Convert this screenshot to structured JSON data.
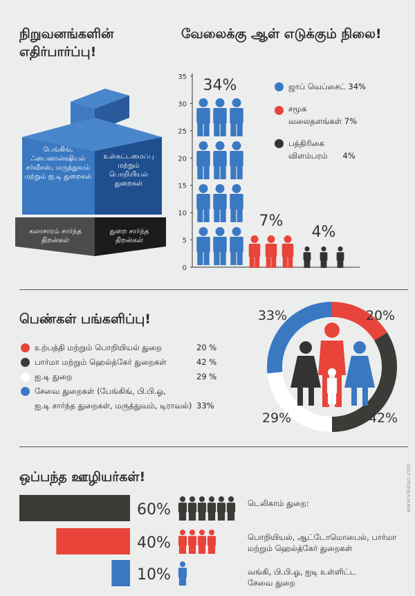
{
  "section1": {
    "title_line1": "நிறுவனங்களின்",
    "title_line2": "எதிர்பார்ப்பு!",
    "box_top_left": "பேங்கிங், ஃபைனான்ஷியல் சர்வீசஸ், மருத்துவம் மற்றும் ஐ.டி துறைகள்",
    "box_top_right": "உள்கட்டமைப்பு மற்றும் பொறியியல் துறைகள்",
    "box_bottom_left": "கலாசாரம் சார்ந்த திறன்கள்",
    "box_bottom_right": "துறை சார்ந்த திறன்கள்"
  },
  "section2": {
    "title": "வேலைக்கு ஆள் எடுக்கும் நிலை!",
    "legend": [
      {
        "label_line1": "ஜாப் வெப்சைட் 34%",
        "label_line2": "",
        "color": "#3a78c2"
      },
      {
        "label_line1": "சமூக",
        "label_line2": "வலைதளங்கள் 7%",
        "color": "#e8443a"
      },
      {
        "label_line1": "பத்திரிகை",
        "label_line2": "விளம்பரம்      4%",
        "color": "#333333"
      }
    ]
  },
  "section3": {
    "title": "பெண்கள் பங்களிப்பு!",
    "legend": [
      {
        "label": "உற்பத்தி மற்றும் பொறியியல் துறை",
        "value": "20 %",
        "color": "#e8443a"
      },
      {
        "label": "பார்மா மற்றும் ஹெல்த்கேர் துறைகள்",
        "value": "42 %",
        "color": "#3b3b38"
      },
      {
        "label": "ஐ.டி துறை",
        "value": "29 %",
        "color": "#ffffff"
      },
      {
        "label": "சேவை துறைகள் (பேங்கிங், பி.பி.ஓ,",
        "label2": "ஐ.டி சார்ந்த துறைகள், மருத்துவம், டிராவல்)",
        "value": "33%",
        "color": "#3a78c2"
      }
    ]
  },
  "section4": {
    "title": "ஒப்பந்த ஊழியர்கள்!",
    "rows": [
      {
        "pct": "60%",
        "value": 60,
        "people": 6,
        "label_line1": "டெலிகாம் துறை:",
        "label_line2": "",
        "color": "#3b3b38"
      },
      {
        "pct": "40%",
        "value": 40,
        "people": 4,
        "label_line1": "பொறியியல், ஆட்டோமொபைல், பார்மா",
        "label_line2": "மற்றும் ஹெல்த்கேர் துறைகள்",
        "color": "#e8443a"
      },
      {
        "pct": "10%",
        "value": 10,
        "people": 1,
        "label_line1": "வங்கி, பி.பி.ஓ, ஐடி உள்ளிட்ட",
        "label_line2": "சேவை துறை",
        "color": "#3a78c2"
      }
    ]
  },
  "watermark": "www.vikatan.com",
  "chart_data": [
    {
      "type": "bar",
      "title": "வேலைக்கு ஆள் எடுக்கும் நிலை!",
      "categories": [
        "ஜாப் வெப்சைட்",
        "சமூக வலைதளங்கள்",
        "பத்திரிகை விளம்பரம்"
      ],
      "values": [
        34,
        7,
        4
      ],
      "value_labels": [
        "34%",
        "7%",
        "4%"
      ],
      "colors": [
        "#3a78c2",
        "#e8443a",
        "#333333"
      ],
      "yticks": [
        0,
        5,
        10,
        15,
        20,
        25,
        30,
        35
      ],
      "ylim": [
        0,
        35
      ]
    },
    {
      "type": "pie",
      "title": "பெண்கள் பங்களிப்பு!",
      "slices": [
        {
          "label": "உற்பத்தி மற்றும் பொறியியல் துறை",
          "value": 20,
          "color": "#e8443a"
        },
        {
          "label": "பார்மா மற்றும் ஹெல்த்கேர் துறைகள்",
          "value": 42,
          "color": "#3b3b38"
        },
        {
          "label": "ஐ.டி துறை",
          "value": 29,
          "color": "#ffffff"
        },
        {
          "label": "சேவை துறைகள்",
          "value": 33,
          "color": "#3a78c2"
        }
      ],
      "value_labels": [
        "20%",
        "42%",
        "29%",
        "33%"
      ]
    },
    {
      "type": "bar",
      "title": "ஒப்பந்த ஊழியர்கள்!",
      "categories": [
        "டெலிகாம் துறை",
        "பொறியியல், ஆட்டோமொபைல், பார்மா மற்றும் ஹெல்த்கேர் துறைகள்",
        "வங்கி, பி.பி.ஓ, ஐடி உள்ளிட்ட சேவை துறை"
      ],
      "values": [
        60,
        40,
        10
      ],
      "colors": [
        "#3b3b38",
        "#e8443a",
        "#3a78c2"
      ]
    }
  ]
}
